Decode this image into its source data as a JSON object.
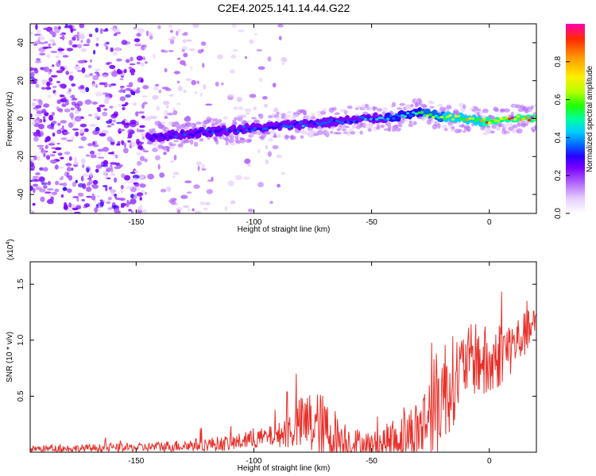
{
  "title": "C2E4.2025.141.14.44.G22",
  "colors": {
    "trace": "#e8302a",
    "axis": "#000000",
    "background": "#ffffff",
    "scatter_noise": "#8a3cf0",
    "colormap": [
      "#ffffff",
      "#e6ccff",
      "#b266ff",
      "#7a00ff",
      "#2a00ff",
      "#0066ff",
      "#00cfff",
      "#00ff9a",
      "#22ff00",
      "#b4ff00",
      "#ffee00",
      "#ff9a00",
      "#ff2a00",
      "#ff00b0"
    ]
  },
  "chart_data": [
    {
      "type": "heatmap",
      "name": "spectrogram",
      "xlabel": "Height of straight line (km)",
      "ylabel": "Frequency (Hz)",
      "xlim": [
        -195,
        20
      ],
      "ylim": [
        -50,
        50
      ],
      "xticks": [
        -150,
        -100,
        -50,
        0
      ],
      "yticks": [
        -40,
        -20,
        0,
        20,
        40
      ],
      "colorbar": {
        "label": "Normalized spectral amplitude",
        "range": [
          0,
          1
        ],
        "ticks": [
          0.0,
          0.2,
          0.4,
          0.6,
          0.8
        ]
      },
      "tone_frequency_trend": {
        "x": [
          -145,
          -120,
          -100,
          -80,
          -60,
          -40,
          -30,
          -20,
          -10,
          0,
          10,
          20
        ],
        "y": [
          -10,
          -7,
          -5,
          -3,
          -1,
          1,
          3,
          1,
          0,
          -2,
          0,
          0
        ]
      },
      "tone_amplitude_trend": {
        "x": [
          -145,
          -100,
          -50,
          -30,
          -20,
          0,
          20
        ],
        "amplitude": [
          0.3,
          0.35,
          0.4,
          0.55,
          0.7,
          0.85,
          0.95
        ]
      }
    },
    {
      "type": "line",
      "name": "snr",
      "xlabel": "Height of straight line (km)",
      "ylabel": "SNR (10 * v/v)",
      "y_scale_label_main": "(x10",
      "y_scale_label_exp": "4",
      "y_scale_label_close": ")",
      "xlim": [
        -195,
        20
      ],
      "ylim": [
        0,
        17000
      ],
      "xticks": [
        -150,
        -100,
        -50,
        0
      ],
      "yticks": [
        5000,
        10000,
        15000
      ],
      "ytick_labels": [
        "0.5",
        "1.0",
        "1.5"
      ],
      "series": [
        {
          "name": "SNR",
          "envelope_x": [
            -195,
            -150,
            -110,
            -90,
            -80,
            -76,
            -72,
            -65,
            -58,
            -50,
            -45,
            -40,
            -35,
            -30,
            -25,
            -22,
            -20,
            -15,
            -10,
            -5,
            0,
            5,
            10,
            15,
            20
          ],
          "envelope_base": [
            300,
            400,
            800,
            1500,
            2500,
            2600,
            2000,
            1300,
            800,
            600,
            800,
            1200,
            1500,
            2000,
            3500,
            4500,
            5500,
            6500,
            8000,
            8500,
            7500,
            9000,
            9500,
            10500,
            11500
          ],
          "envelope_amplitude": [
            300,
            400,
            700,
            1000,
            2500,
            3000,
            3500,
            2500,
            1500,
            1200,
            1500,
            2000,
            2500,
            3000,
            4000,
            5000,
            5000,
            4000,
            3000,
            3500,
            3500,
            3000,
            2500,
            2000,
            1500
          ]
        }
      ]
    }
  ]
}
